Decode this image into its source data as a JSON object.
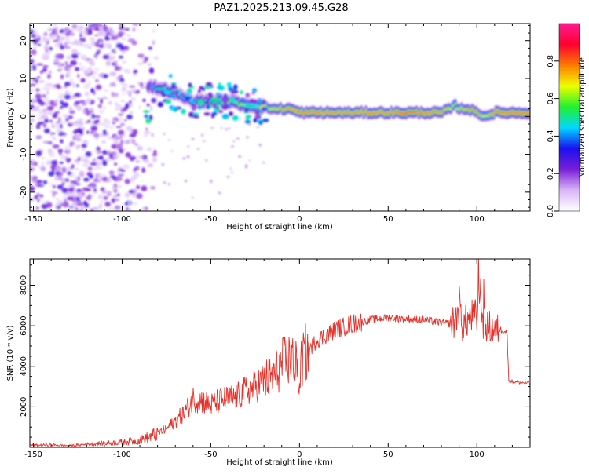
{
  "figure_title": "PAZ1.2025.213.09.45.G28",
  "chart_data": [
    {
      "type": "heatmap",
      "xlabel": "Height of straight line (km)",
      "ylabel": "Frequency (Hz)",
      "xlim": [
        -152,
        130
      ],
      "ylim": [
        -25,
        24.5
      ],
      "x_ticks": [
        -150,
        -100,
        -50,
        0,
        50,
        100
      ],
      "y_ticks": [
        -20,
        -10,
        0,
        10,
        20
      ],
      "colorbar": {
        "label": "Normalized spectral amplitude",
        "range": [
          0,
          1
        ],
        "ticks": [
          "0.0",
          "0.2",
          "0.4",
          "0.6",
          "0.8"
        ],
        "tick_values": [
          0.0,
          0.2,
          0.4,
          0.6,
          0.8
        ]
      },
      "colormap": [
        "#ffffff",
        "#d8b6f6",
        "#7a1ed8",
        "#1a10f0",
        "#00d8ff",
        "#22f02e",
        "#f0ff00",
        "#ff7a00",
        "#ff0030",
        "#ff1a90"
      ],
      "ridge": {
        "x": [
          -85,
          -80,
          -75,
          -70,
          -65,
          -60,
          -55,
          -50,
          -45,
          -40,
          -35,
          -30,
          -25,
          -20,
          -15,
          -10,
          -5,
          0,
          10,
          20,
          30,
          40,
          50,
          60,
          70,
          80,
          85,
          88,
          90,
          95,
          100,
          105,
          110,
          120,
          130
        ],
        "freq": [
          8,
          7.5,
          7,
          6,
          5,
          4,
          4,
          4,
          4,
          4,
          3.5,
          3,
          3,
          2.5,
          2,
          2,
          2,
          1,
          1,
          1,
          1,
          1,
          1,
          1,
          1,
          1,
          2,
          3,
          2,
          2,
          1,
          0,
          1,
          1,
          1
        ],
        "amplitude": [
          0.4,
          0.5,
          0.55,
          0.5,
          0.45,
          0.45,
          0.5,
          0.5,
          0.55,
          0.6,
          0.6,
          0.65,
          0.65,
          0.7,
          0.7,
          0.75,
          0.8,
          0.85,
          0.85,
          0.8,
          0.8,
          0.85,
          0.8,
          0.9,
          0.85,
          0.8,
          0.7,
          0.6,
          0.7,
          0.75,
          0.8,
          0.65,
          0.85,
          0.85,
          0.85
        ]
      },
      "noise_region": {
        "x_range": [
          -152,
          -80
        ],
        "amplitude": [
          0.05,
          0.3
        ]
      }
    },
    {
      "type": "line",
      "xlabel": "Height of straight line (km)",
      "ylabel": "SNR (10 * v/v)",
      "xlim": [
        -152,
        130
      ],
      "ylim": [
        0,
        9300
      ],
      "x_ticks": [
        -150,
        -100,
        -50,
        0,
        50,
        100
      ],
      "y_ticks": [
        2000,
        4000,
        6000,
        8000
      ],
      "line_color": "#e8302a",
      "series": [
        {
          "x": [
            -152,
            -140,
            -130,
            -120,
            -110,
            -100,
            -90,
            -85,
            -80,
            -75,
            -70,
            -65,
            -62,
            -60,
            -55,
            -50,
            -45,
            -40,
            -35,
            -30,
            -25,
            -20,
            -15,
            -10,
            -5,
            -2,
            0,
            2,
            5,
            10,
            20,
            30,
            40,
            50,
            60,
            70,
            80,
            85,
            88,
            90,
            92,
            95,
            98,
            100,
            102,
            103,
            105,
            108,
            110,
            115,
            117,
            118,
            120,
            125,
            130
          ],
          "y": [
            100,
            120,
            80,
            150,
            200,
            250,
            350,
            500,
            700,
            900,
            1300,
            1700,
            2100,
            2400,
            2300,
            2100,
            2300,
            2400,
            2500,
            2800,
            3000,
            3300,
            3500,
            4100,
            4400,
            4000,
            3600,
            4500,
            4800,
            5300,
            5800,
            6100,
            6300,
            6400,
            6350,
            6300,
            6150,
            6100,
            6200,
            7100,
            6000,
            6300,
            6500,
            6400,
            8500,
            6200,
            6000,
            5900,
            5800,
            5800,
            5700,
            3300,
            3250,
            3200,
            3150
          ]
        }
      ]
    }
  ]
}
